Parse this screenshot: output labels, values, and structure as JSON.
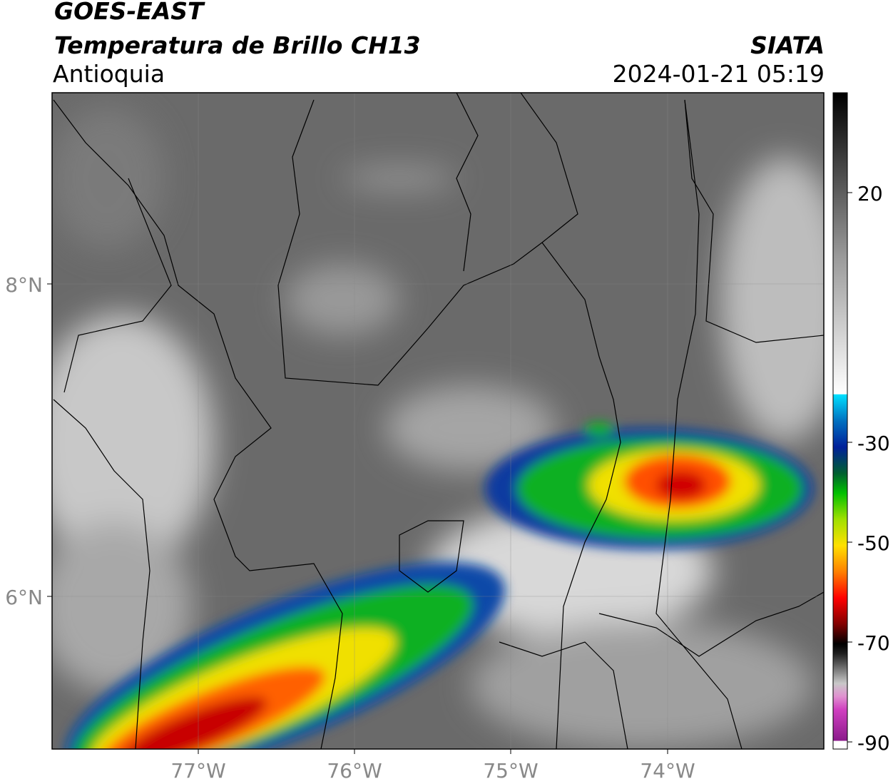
{
  "header": {
    "satellite": "GOES-EAST",
    "product": "Temperatura de Brillo CH13",
    "region": "Antioquia",
    "source": "SIATA",
    "datetime": "2024-01-21 05:19"
  },
  "map": {
    "lat_labels": [
      "8°N",
      "6°N"
    ],
    "lon_labels": [
      "77°W",
      "76°W",
      "75°W",
      "74°W"
    ]
  },
  "colorbar": {
    "lim": [
      -90,
      40
    ],
    "ticks": [
      20,
      -30,
      -50,
      -70,
      -90
    ]
  }
}
